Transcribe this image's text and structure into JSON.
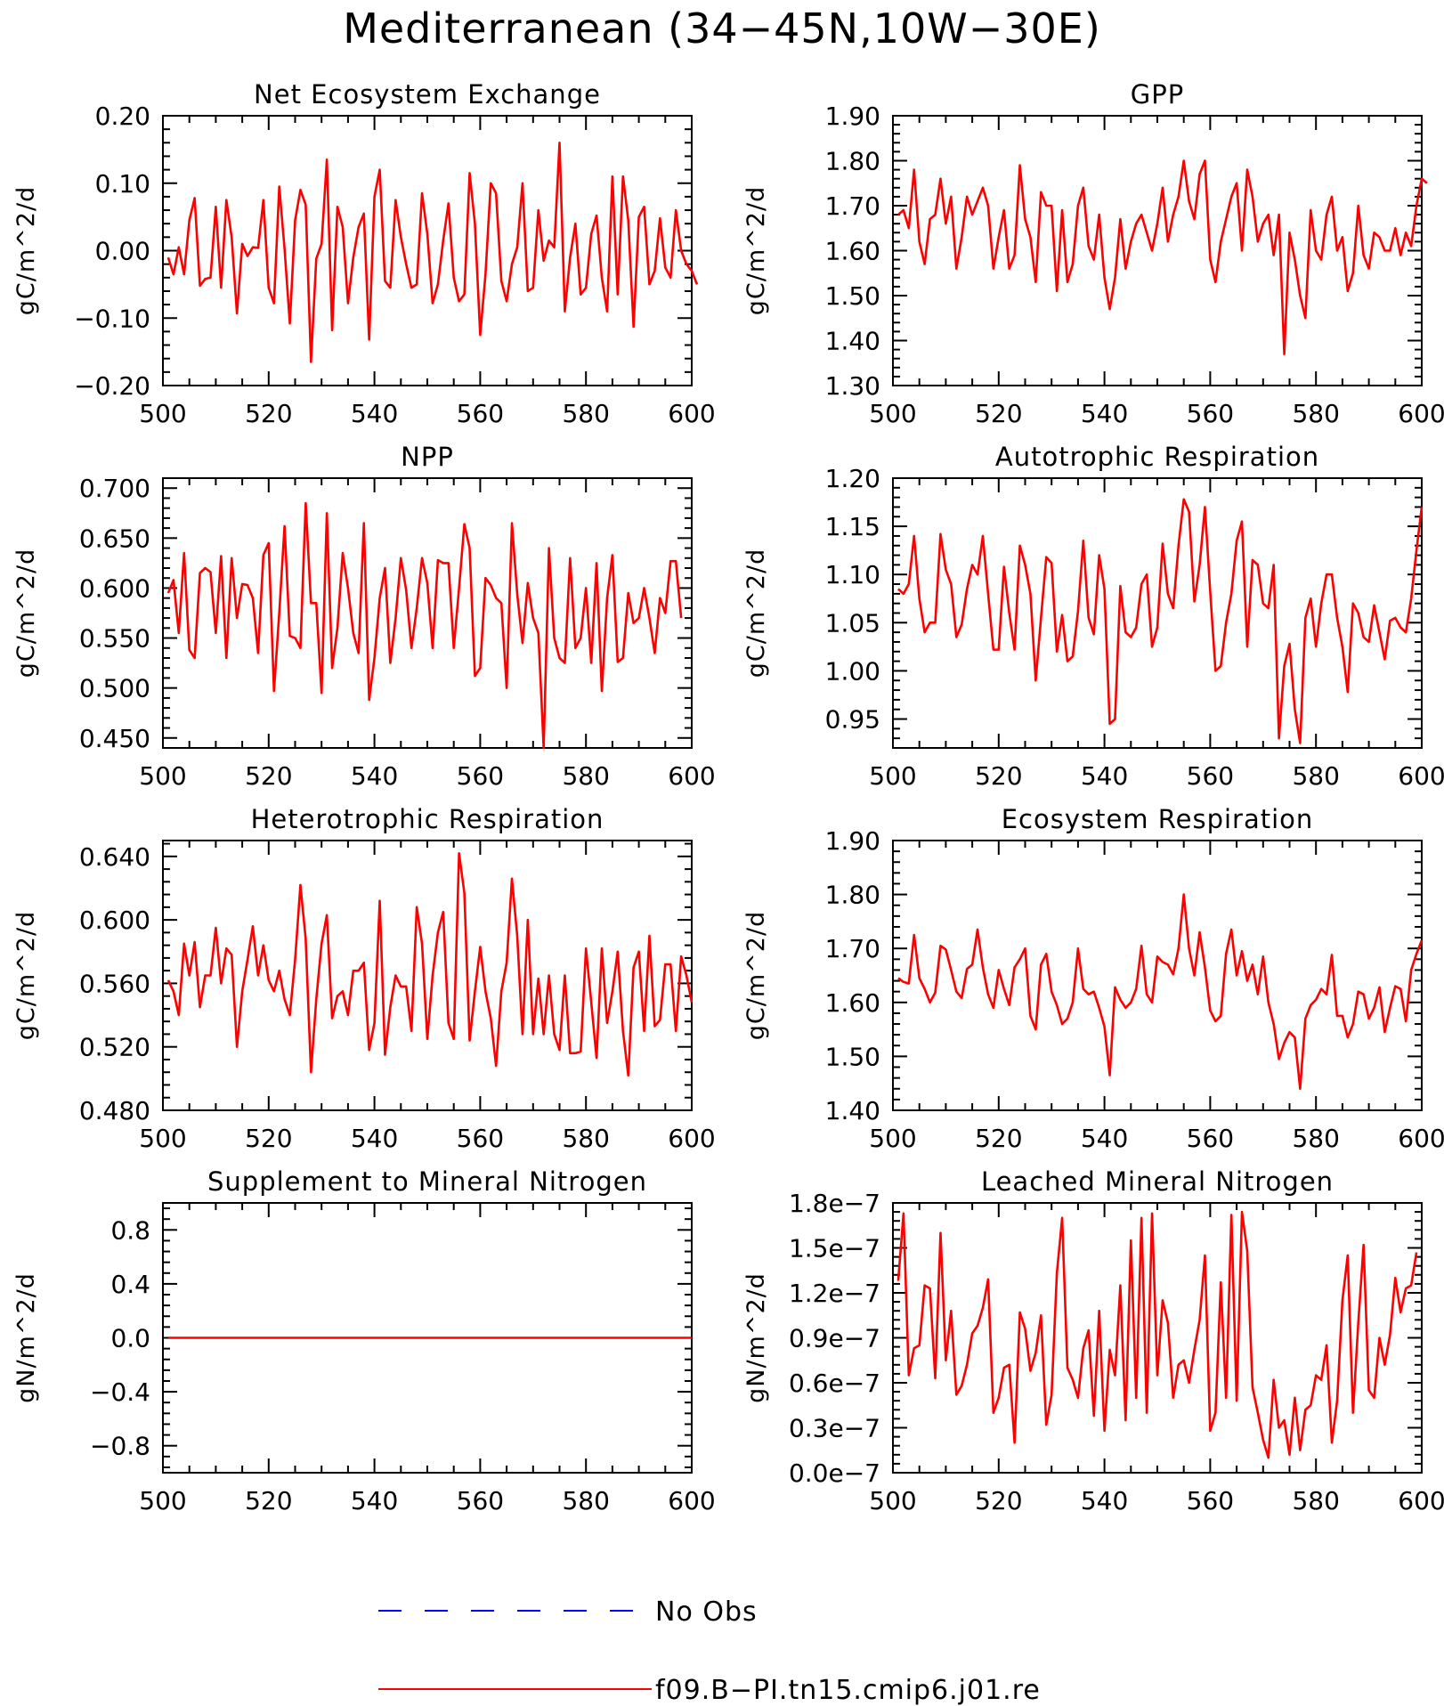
{
  "figure_title": "Mediterranean (34−45N,10W−30E)",
  "colors": {
    "model": "#ff0000",
    "obs": "#0000ff",
    "axis": "#000000"
  },
  "legend": [
    {
      "label": "No Obs",
      "style": "dashed",
      "color": "#0000ff"
    },
    {
      "label": "f09.B−PI.tn15.cmip6.j01.re",
      "style": "solid",
      "color": "#ff0000"
    }
  ],
  "chart_data": [
    {
      "type": "line",
      "title": "Net Ecosystem Exchange",
      "ylabel": "gC/m^2/d",
      "xlim": [
        500,
        600
      ],
      "ylim": [
        -0.2,
        0.2
      ],
      "xticks": [
        "500",
        "520",
        "540",
        "560",
        "580",
        "600"
      ],
      "yticks": [
        "−0.20",
        "−0.10",
        "0.00",
        "0.10",
        "0.20"
      ],
      "series": [
        {
          "x_start": 501,
          "values": [
            -0.01,
            -0.035,
            0.005,
            -0.035,
            0.045,
            0.078,
            -0.052,
            -0.042,
            -0.04,
            0.065,
            -0.055,
            0.075,
            0.02,
            -0.093,
            0.01,
            -0.008,
            0.005,
            0.004,
            0.075,
            -0.055,
            -0.078,
            0.095,
            0.003,
            -0.108,
            0.045,
            0.09,
            0.068,
            -0.165,
            -0.012,
            0.01,
            0.135,
            -0.118,
            0.065,
            0.035,
            -0.078,
            -0.01,
            0.035,
            0.055,
            -0.132,
            0.08,
            0.12,
            -0.045,
            -0.055,
            0.075,
            0.02,
            -0.02,
            -0.055,
            -0.05,
            0.085,
            0.025,
            -0.078,
            -0.05,
            0.015,
            0.07,
            -0.04,
            -0.075,
            -0.065,
            0.115,
            0.04,
            -0.125,
            -0.035,
            0.1,
            0.085,
            -0.045,
            -0.075,
            -0.02,
            0.005,
            0.1,
            -0.06,
            -0.055,
            0.06,
            -0.015,
            0.015,
            0.005,
            0.16,
            -0.09,
            -0.01,
            0.04,
            -0.065,
            -0.055,
            0.025,
            0.052,
            -0.04,
            -0.09,
            0.11,
            -0.065,
            0.11,
            0.045,
            -0.113,
            0.05,
            0.065,
            -0.05,
            -0.03,
            0.048,
            -0.025,
            -0.04,
            0.06,
            0.0,
            -0.02,
            -0.03,
            -0.05
          ]
        }
      ]
    },
    {
      "type": "line",
      "title": "GPP",
      "ylabel": "gC/m^2/d",
      "xlim": [
        500,
        600
      ],
      "ylim": [
        1.3,
        1.9
      ],
      "xticks": [
        "500",
        "520",
        "540",
        "560",
        "580",
        "600"
      ],
      "yticks": [
        "1.30",
        "1.40",
        "1.50",
        "1.60",
        "1.70",
        "1.80",
        "1.90"
      ],
      "series": [
        {
          "x_start": 501,
          "values": [
            1.68,
            1.69,
            1.65,
            1.78,
            1.62,
            1.57,
            1.67,
            1.68,
            1.76,
            1.66,
            1.72,
            1.56,
            1.63,
            1.72,
            1.68,
            1.71,
            1.74,
            1.7,
            1.56,
            1.63,
            1.69,
            1.56,
            1.59,
            1.79,
            1.67,
            1.63,
            1.53,
            1.73,
            1.7,
            1.7,
            1.51,
            1.69,
            1.53,
            1.57,
            1.7,
            1.74,
            1.61,
            1.58,
            1.68,
            1.54,
            1.47,
            1.54,
            1.67,
            1.56,
            1.62,
            1.66,
            1.68,
            1.64,
            1.6,
            1.66,
            1.74,
            1.62,
            1.68,
            1.72,
            1.8,
            1.71,
            1.67,
            1.77,
            1.8,
            1.58,
            1.53,
            1.62,
            1.67,
            1.72,
            1.75,
            1.6,
            1.78,
            1.72,
            1.62,
            1.66,
            1.68,
            1.59,
            1.68,
            1.37,
            1.64,
            1.58,
            1.5,
            1.45,
            1.69,
            1.6,
            1.58,
            1.68,
            1.72,
            1.6,
            1.63,
            1.51,
            1.55,
            1.7,
            1.59,
            1.56,
            1.64,
            1.63,
            1.6,
            1.6,
            1.65,
            1.59,
            1.64,
            1.61,
            1.7,
            1.76,
            1.75
          ]
        }
      ]
    },
    {
      "type": "line",
      "title": "NPP",
      "ylabel": "gC/m^2/d",
      "xlim": [
        500,
        600
      ],
      "ylim": [
        0.44,
        0.71
      ],
      "xticks": [
        "500",
        "520",
        "540",
        "560",
        "580",
        "600"
      ],
      "yticks": [
        "0.450",
        "0.500",
        "0.550",
        "0.600",
        "0.650",
        "0.700"
      ],
      "series": [
        {
          "x_start": 501,
          "values": [
            0.595,
            0.608,
            0.555,
            0.635,
            0.538,
            0.53,
            0.615,
            0.62,
            0.616,
            0.555,
            0.632,
            0.53,
            0.63,
            0.57,
            0.604,
            0.603,
            0.59,
            0.535,
            0.633,
            0.645,
            0.497,
            0.575,
            0.662,
            0.552,
            0.55,
            0.54,
            0.685,
            0.585,
            0.585,
            0.495,
            0.675,
            0.52,
            0.56,
            0.635,
            0.6,
            0.555,
            0.535,
            0.665,
            0.488,
            0.53,
            0.59,
            0.62,
            0.525,
            0.57,
            0.63,
            0.598,
            0.54,
            0.58,
            0.63,
            0.605,
            0.54,
            0.628,
            0.625,
            0.625,
            0.54,
            0.6,
            0.664,
            0.64,
            0.512,
            0.52,
            0.61,
            0.603,
            0.59,
            0.585,
            0.5,
            0.665,
            0.594,
            0.545,
            0.605,
            0.57,
            0.555,
            0.44,
            0.64,
            0.55,
            0.53,
            0.525,
            0.63,
            0.54,
            0.55,
            0.6,
            0.525,
            0.625,
            0.497,
            0.59,
            0.633,
            0.526,
            0.53,
            0.595,
            0.565,
            0.57,
            0.6,
            0.57,
            0.535,
            0.59,
            0.575,
            0.627,
            0.627,
            0.57
          ]
        }
      ]
    },
    {
      "type": "line",
      "title": "Autotrophic Respiration",
      "ylabel": "gC/m^2/d",
      "xlim": [
        500,
        600
      ],
      "ylim": [
        0.92,
        1.2
      ],
      "xticks": [
        "500",
        "520",
        "540",
        "560",
        "580",
        "600"
      ],
      "yticks": [
        "0.95",
        "1.00",
        "1.05",
        "1.10",
        "1.15",
        "1.20"
      ],
      "series": [
        {
          "x_start": 501,
          "values": [
            1.085,
            1.08,
            1.09,
            1.14,
            1.075,
            1.04,
            1.05,
            1.05,
            1.142,
            1.105,
            1.09,
            1.035,
            1.048,
            1.085,
            1.11,
            1.1,
            1.14,
            1.08,
            1.022,
            1.022,
            1.108,
            1.06,
            1.022,
            1.13,
            1.11,
            1.08,
            0.99,
            1.055,
            1.118,
            1.112,
            1.02,
            1.058,
            1.01,
            1.015,
            1.062,
            1.135,
            1.055,
            1.038,
            1.12,
            1.085,
            0.945,
            0.95,
            1.088,
            1.04,
            1.035,
            1.045,
            1.09,
            1.1,
            1.025,
            1.045,
            1.132,
            1.08,
            1.065,
            1.13,
            1.178,
            1.165,
            1.072,
            1.11,
            1.17,
            1.082,
            1.0,
            1.005,
            1.05,
            1.08,
            1.135,
            1.155,
            1.025,
            1.115,
            1.11,
            1.07,
            1.065,
            1.11,
            0.93,
            1.005,
            1.028,
            0.96,
            0.925,
            1.055,
            1.075,
            1.025,
            1.07,
            1.1,
            1.1,
            1.055,
            1.025,
            0.978,
            1.07,
            1.06,
            1.035,
            1.03,
            1.068,
            1.04,
            1.012,
            1.052,
            1.055,
            1.045,
            1.04,
            1.075,
            1.125,
            1.17
          ]
        }
      ]
    },
    {
      "type": "line",
      "title": "Heterotrophic Respiration",
      "ylabel": "gC/m^2/d",
      "xlim": [
        500,
        600
      ],
      "ylim": [
        0.48,
        0.65
      ],
      "xticks": [
        "500",
        "520",
        "540",
        "560",
        "580",
        "600"
      ],
      "yticks": [
        "0.480",
        "0.520",
        "0.560",
        "0.600",
        "0.640"
      ],
      "series": [
        {
          "x_start": 501,
          "values": [
            0.562,
            0.555,
            0.54,
            0.585,
            0.565,
            0.586,
            0.545,
            0.565,
            0.565,
            0.595,
            0.56,
            0.582,
            0.578,
            0.52,
            0.555,
            0.575,
            0.596,
            0.565,
            0.584,
            0.562,
            0.555,
            0.568,
            0.55,
            0.54,
            0.575,
            0.622,
            0.588,
            0.504,
            0.55,
            0.585,
            0.603,
            0.538,
            0.552,
            0.555,
            0.54,
            0.568,
            0.568,
            0.573,
            0.518,
            0.535,
            0.612,
            0.515,
            0.545,
            0.565,
            0.558,
            0.558,
            0.53,
            0.608,
            0.585,
            0.525,
            0.565,
            0.592,
            0.605,
            0.535,
            0.525,
            0.642,
            0.617,
            0.524,
            0.555,
            0.583,
            0.555,
            0.538,
            0.508,
            0.555,
            0.573,
            0.626,
            0.59,
            0.528,
            0.6,
            0.528,
            0.563,
            0.528,
            0.565,
            0.528,
            0.518,
            0.565,
            0.516,
            0.516,
            0.517,
            0.582,
            0.548,
            0.513,
            0.582,
            0.535,
            0.555,
            0.58,
            0.53,
            0.502,
            0.57,
            0.58,
            0.53,
            0.59,
            0.533,
            0.537,
            0.572,
            0.572,
            0.53,
            0.577,
            0.565,
            0.548
          ]
        }
      ]
    },
    {
      "type": "line",
      "title": "Ecosystem Respiration",
      "ylabel": "gC/m^2/d",
      "xlim": [
        500,
        600
      ],
      "ylim": [
        1.4,
        1.9
      ],
      "xticks": [
        "500",
        "520",
        "540",
        "560",
        "580",
        "600"
      ],
      "yticks": [
        "1.40",
        "1.50",
        "1.60",
        "1.70",
        "1.80",
        "1.90"
      ],
      "series": [
        {
          "x_start": 501,
          "values": [
            1.645,
            1.638,
            1.635,
            1.725,
            1.645,
            1.625,
            1.6,
            1.618,
            1.705,
            1.698,
            1.66,
            1.62,
            1.608,
            1.662,
            1.67,
            1.735,
            1.665,
            1.615,
            1.59,
            1.66,
            1.625,
            1.595,
            1.665,
            1.68,
            1.7,
            1.575,
            1.55,
            1.67,
            1.69,
            1.62,
            1.595,
            1.56,
            1.57,
            1.6,
            1.7,
            1.625,
            1.615,
            1.62,
            1.59,
            1.555,
            1.465,
            1.628,
            1.605,
            1.59,
            1.6,
            1.625,
            1.705,
            1.615,
            1.6,
            1.685,
            1.675,
            1.67,
            1.652,
            1.7,
            1.8,
            1.7,
            1.65,
            1.73,
            1.665,
            1.585,
            1.565,
            1.575,
            1.69,
            1.735,
            1.65,
            1.695,
            1.64,
            1.67,
            1.615,
            1.685,
            1.6,
            1.56,
            1.495,
            1.525,
            1.545,
            1.535,
            1.44,
            1.57,
            1.595,
            1.605,
            1.625,
            1.615,
            1.688,
            1.575,
            1.575,
            1.535,
            1.56,
            1.62,
            1.615,
            1.57,
            1.59,
            1.628,
            1.545,
            1.59,
            1.63,
            1.625,
            1.565,
            1.66,
            1.69,
            1.715
          ]
        }
      ]
    },
    {
      "type": "line",
      "title": "Supplement to Mineral Nitrogen",
      "ylabel": "gN/m^2/d",
      "xlim": [
        500,
        600
      ],
      "ylim": [
        -1,
        1
      ],
      "xticks": [
        "500",
        "520",
        "540",
        "560",
        "580",
        "600"
      ],
      "yticks": [
        "−0.8",
        "−0.4",
        "0.0",
        "0.4",
        "0.8"
      ],
      "series": [
        {
          "x_start": 501,
          "values": [
            0,
            0,
            0,
            0,
            0,
            0,
            0,
            0,
            0,
            0,
            0,
            0,
            0,
            0,
            0,
            0,
            0,
            0,
            0,
            0,
            0,
            0,
            0,
            0,
            0,
            0,
            0,
            0,
            0,
            0,
            0,
            0,
            0,
            0,
            0,
            0,
            0,
            0,
            0,
            0,
            0,
            0,
            0,
            0,
            0,
            0,
            0,
            0,
            0,
            0,
            0,
            0,
            0,
            0,
            0,
            0,
            0,
            0,
            0,
            0,
            0,
            0,
            0,
            0,
            0,
            0,
            0,
            0,
            0,
            0,
            0,
            0,
            0,
            0,
            0,
            0,
            0,
            0,
            0,
            0,
            0,
            0,
            0,
            0,
            0,
            0,
            0,
            0,
            0,
            0,
            0,
            0,
            0,
            0,
            0,
            0,
            0,
            0,
            0,
            0
          ]
        }
      ]
    },
    {
      "type": "line",
      "title": "Leached Mineral Nitrogen",
      "ylabel": "gN/m^2/d",
      "xlim": [
        500,
        600
      ],
      "ylim": [
        0,
        1.8e-07
      ],
      "xticks": [
        "500",
        "520",
        "540",
        "560",
        "580",
        "600"
      ],
      "yticks": [
        "0.0e−7",
        "0.3e−7",
        "0.6e−7",
        "0.9e−7",
        "1.2e−7",
        "1.5e−7",
        "1.8e−7"
      ],
      "series": [
        {
          "x_start": 501,
          "values": [
            1.28e-07,
            1.73e-07,
            6.5e-08,
            8.3e-08,
            8.5e-08,
            1.25e-07,
            1.23e-07,
            6.3e-08,
            1.6e-07,
            7.5e-08,
            1.08e-07,
            5.2e-08,
            5.8e-08,
            7.2e-08,
            9.3e-08,
            9.8e-08,
            1.1e-07,
            1.29e-07,
            4e-08,
            5e-08,
            7e-08,
            7.2e-08,
            2e-08,
            1.07e-07,
            9.6e-08,
            6.8e-08,
            8e-08,
            1.05e-07,
            3.2e-08,
            5.2e-08,
            1.33e-07,
            1.7e-07,
            7e-08,
            6.2e-08,
            5e-08,
            8.3e-08,
            9.5e-08,
            3.8e-08,
            1.08e-07,
            2.8e-08,
            8.2e-08,
            6.5e-08,
            1.25e-07,
            3.5e-08,
            1.55e-07,
            5e-08,
            1.7e-07,
            4e-08,
            1.73e-07,
            6.5e-08,
            1.15e-07,
            1e-07,
            5e-08,
            7.2e-08,
            7.5e-08,
            6e-08,
            8.2e-08,
            1.02e-07,
            1.45e-07,
            2.8e-08,
            4e-08,
            1.27e-07,
            5e-08,
            1.72e-07,
            4.8e-08,
            1.74e-07,
            1.48e-07,
            5.7e-08,
            4e-08,
            2.2e-08,
            1e-08,
            6.2e-08,
            3e-08,
            3.5e-08,
            1.2e-08,
            5e-08,
            1.5e-08,
            4.2e-08,
            4.5e-08,
            6.5e-08,
            6.2e-08,
            8.5e-08,
            2e-08,
            4.8e-08,
            1.15e-07,
            1.45e-07,
            4e-08,
            1e-07,
            1.52e-07,
            5.5e-08,
            5e-08,
            9e-08,
            7.2e-08,
            9.2e-08,
            1.3e-07,
            1.07e-07,
            1.23e-07,
            1.25e-07,
            1.47e-07
          ]
        }
      ]
    }
  ]
}
